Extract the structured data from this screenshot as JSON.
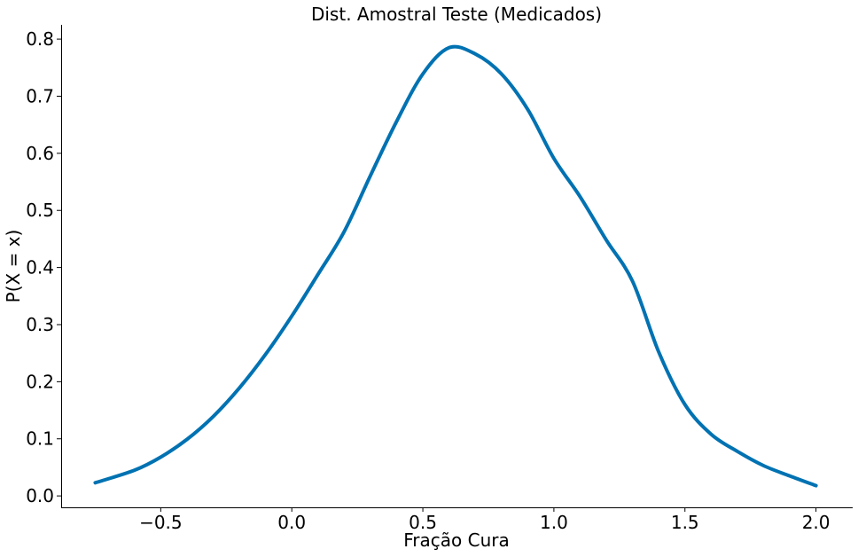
{
  "chart_data": {
    "type": "line",
    "title": "Dist. Amostral Teste (Medicados)",
    "xlabel": "Fração Cura",
    "ylabel": "P(X = x)",
    "xlim": [
      -0.88,
      2.14
    ],
    "ylim": [
      -0.02,
      0.825
    ],
    "grid": false,
    "x_ticks": [
      -0.5,
      0.0,
      0.5,
      1.0,
      1.5,
      2.0
    ],
    "x_tick_labels": [
      "−0.5",
      "0.0",
      "0.5",
      "1.0",
      "1.5",
      "2.0"
    ],
    "y_ticks": [
      0.0,
      0.1,
      0.2,
      0.3,
      0.4,
      0.5,
      0.6,
      0.7,
      0.8
    ],
    "y_tick_labels": [
      "0.0",
      "0.1",
      "0.2",
      "0.3",
      "0.4",
      "0.5",
      "0.6",
      "0.7",
      "0.8"
    ],
    "series": [
      {
        "color": "#0072b2",
        "x": [
          -0.75,
          -0.6,
          -0.5,
          -0.4,
          -0.3,
          -0.2,
          -0.1,
          0.0,
          0.1,
          0.2,
          0.3,
          0.4,
          0.5,
          0.6,
          0.7,
          0.8,
          0.9,
          1.0,
          1.1,
          1.2,
          1.3,
          1.4,
          1.5,
          1.6,
          1.7,
          1.8,
          1.9,
          2.0
        ],
        "y": [
          0.023,
          0.045,
          0.068,
          0.099,
          0.139,
          0.189,
          0.248,
          0.315,
          0.388,
          0.463,
          0.561,
          0.656,
          0.739,
          0.785,
          0.774,
          0.739,
          0.677,
          0.591,
          0.524,
          0.448,
          0.376,
          0.252,
          0.16,
          0.108,
          0.078,
          0.053,
          0.035,
          0.018
        ]
      }
    ]
  }
}
